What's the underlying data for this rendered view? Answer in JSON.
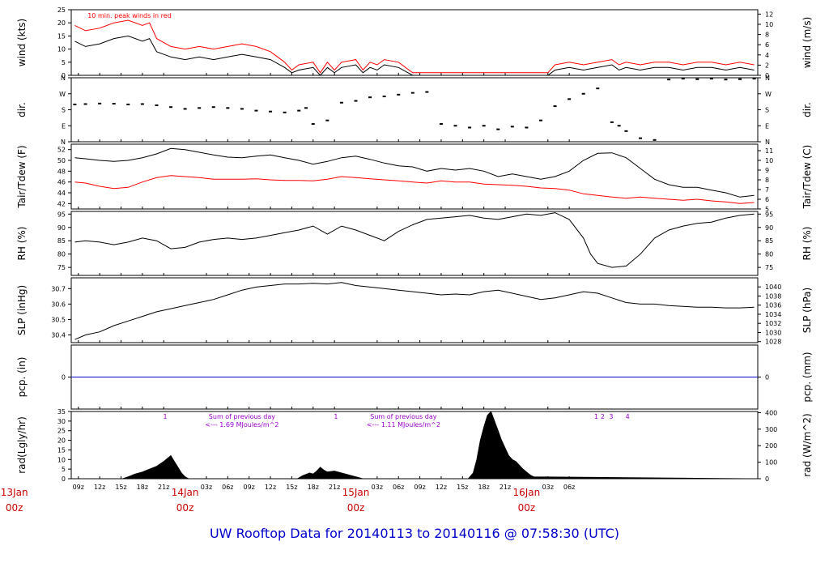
{
  "title": "UW Rooftop Data for 20140113  to  20140116 @ 07:58:30  (UTC)",
  "colors": {
    "primary": "#000000",
    "secondary": "#ff0000",
    "zero_line": "#0000cc",
    "annotation": "#9900cc",
    "day_label": "#cc0000",
    "footer": "#0000cc"
  },
  "chart_data": [
    {
      "type": "line",
      "id": "wind",
      "ylabel_left": "wind (kts)",
      "ylabel_right": "wind (m/s)",
      "ylim": [
        0,
        25
      ],
      "yticks_left": [
        0,
        5,
        10,
        15,
        20,
        25
      ],
      "yticks_right": [
        0,
        2,
        4,
        6,
        8,
        10,
        12
      ],
      "right_scale_factor": 0.5144,
      "annotation": "10 min. peak winds in red",
      "series": [
        {
          "name": "",
          "color": "#000000",
          "x": [
            8.5,
            10,
            12,
            14,
            16,
            18,
            19,
            20,
            22,
            24,
            26,
            28,
            30,
            32,
            34,
            36,
            38,
            39,
            40,
            42,
            43,
            44,
            45,
            46,
            48,
            49,
            50,
            51,
            52,
            54,
            56,
            57,
            58,
            59,
            60,
            62,
            64,
            66,
            68,
            70,
            72,
            74,
            75,
            76,
            78,
            80,
            82,
            84,
            85,
            86,
            88,
            90,
            92,
            94,
            96,
            98,
            100,
            102,
            104
          ],
          "values": [
            13,
            11,
            12,
            14,
            15,
            13,
            14,
            9,
            7,
            6,
            7,
            6,
            7,
            8,
            7,
            6,
            3,
            1,
            2,
            3,
            0,
            3,
            1,
            3,
            4,
            1,
            3,
            2,
            4,
            3,
            0,
            0,
            0,
            0,
            0,
            0,
            0,
            0,
            0,
            0,
            0,
            0,
            0,
            2,
            3,
            2,
            3,
            4,
            2,
            3,
            2,
            3,
            3,
            2,
            3,
            3,
            2,
            3,
            2
          ]
        },
        {
          "name": "",
          "color": "#ff0000",
          "x": [
            8.5,
            10,
            12,
            14,
            16,
            18,
            19,
            20,
            22,
            24,
            26,
            28,
            30,
            32,
            34,
            36,
            38,
            39,
            40,
            42,
            43,
            44,
            45,
            46,
            48,
            49,
            50,
            51,
            52,
            54,
            56,
            57,
            58,
            59,
            60,
            62,
            64,
            66,
            68,
            70,
            72,
            74,
            75,
            76,
            78,
            80,
            82,
            84,
            85,
            86,
            88,
            90,
            92,
            94,
            96,
            98,
            100,
            102,
            104
          ],
          "values": [
            19,
            17,
            18,
            20,
            21,
            19,
            20,
            14,
            11,
            10,
            11,
            10,
            11,
            12,
            11,
            9,
            5,
            2,
            4,
            5,
            1,
            5,
            2,
            5,
            6,
            2,
            5,
            4,
            6,
            5,
            1,
            1,
            1,
            1,
            1,
            1,
            1,
            1,
            1,
            1,
            1,
            1,
            1,
            4,
            5,
            4,
            5,
            6,
            4,
            5,
            4,
            5,
            5,
            4,
            5,
            5,
            4,
            5,
            4
          ]
        }
      ]
    },
    {
      "type": "scatter",
      "id": "dir",
      "ylabel_left": "dir.",
      "ylabel_right": "dir.",
      "ylim": [
        0,
        360
      ],
      "ytick_labels": [
        "N",
        "E",
        "S",
        "W",
        "N"
      ],
      "ytick_values": [
        0,
        90,
        180,
        270,
        360
      ],
      "series": [
        {
          "name": "",
          "color": "#000000",
          "x": [
            8.5,
            10,
            12,
            14,
            16,
            18,
            20,
            22,
            24,
            26,
            28,
            30,
            32,
            34,
            36,
            38,
            40,
            41,
            42,
            44,
            46,
            48,
            50,
            52,
            54,
            56,
            58,
            60,
            62,
            64,
            66,
            68,
            70,
            72,
            74,
            76,
            78,
            80,
            82,
            84,
            85,
            86,
            88,
            90,
            92,
            94,
            96,
            98,
            100,
            102,
            104
          ],
          "values": [
            210,
            212,
            215,
            214,
            210,
            212,
            205,
            195,
            185,
            190,
            195,
            190,
            185,
            175,
            170,
            165,
            175,
            190,
            100,
            120,
            220,
            230,
            250,
            255,
            265,
            275,
            280,
            100,
            90,
            80,
            90,
            70,
            85,
            80,
            120,
            200,
            240,
            270,
            300,
            110,
            90,
            60,
            20,
            10,
            350,
            355,
            352,
            355,
            350,
            352,
            355
          ]
        }
      ]
    },
    {
      "type": "line",
      "id": "temperature",
      "ylabel_left": "Tair/Tdew (F)",
      "ylabel_right": "Tair/Tdew (C)",
      "ylim": [
        41,
        53
      ],
      "yticks_left": [
        42,
        44,
        46,
        48,
        50,
        52
      ],
      "yticks_right": [
        5,
        6,
        7,
        8,
        9,
        10,
        11
      ],
      "series": [
        {
          "name": "",
          "color": "#000000",
          "x": [
            8.5,
            10,
            12,
            14,
            16,
            18,
            20,
            22,
            24,
            26,
            28,
            30,
            32,
            34,
            36,
            38,
            40,
            42,
            44,
            46,
            48,
            50,
            52,
            54,
            56,
            58,
            60,
            62,
            64,
            66,
            68,
            70,
            72,
            74,
            76,
            78,
            80,
            82,
            84,
            86,
            88,
            90,
            92,
            94,
            96,
            98,
            100,
            102,
            104
          ],
          "values": [
            50.5,
            50.3,
            50.0,
            49.8,
            50.0,
            50.5,
            51.2,
            52.2,
            52.0,
            51.5,
            51.0,
            50.6,
            50.5,
            50.8,
            51.0,
            50.5,
            50.0,
            49.3,
            49.8,
            50.5,
            50.8,
            50.2,
            49.5,
            49.0,
            48.8,
            48.0,
            48.5,
            48.2,
            48.5,
            48.0,
            47.0,
            47.5,
            47.0,
            46.5,
            47.0,
            48.0,
            50.0,
            51.3,
            51.4,
            50.5,
            48.5,
            46.5,
            45.5,
            45.0,
            45.0,
            44.5,
            44.0,
            43.2,
            43.5
          ]
        },
        {
          "name": "",
          "color": "#ff0000",
          "x": [
            8.5,
            10,
            12,
            14,
            16,
            18,
            20,
            22,
            24,
            26,
            28,
            30,
            32,
            34,
            36,
            38,
            40,
            42,
            44,
            46,
            48,
            50,
            52,
            54,
            56,
            58,
            60,
            62,
            64,
            66,
            68,
            70,
            72,
            74,
            76,
            78,
            80,
            82,
            84,
            86,
            88,
            90,
            92,
            94,
            96,
            98,
            100,
            102,
            104
          ],
          "values": [
            46.0,
            45.8,
            45.2,
            44.8,
            45.0,
            46.0,
            46.8,
            47.2,
            47.0,
            46.8,
            46.5,
            46.5,
            46.5,
            46.6,
            46.4,
            46.3,
            46.3,
            46.2,
            46.5,
            47.0,
            46.8,
            46.6,
            46.4,
            46.2,
            46.0,
            45.8,
            46.2,
            46.0,
            46.0,
            45.6,
            45.5,
            45.4,
            45.2,
            44.9,
            44.8,
            44.5,
            43.8,
            43.5,
            43.2,
            43.0,
            43.2,
            43.0,
            42.8,
            42.6,
            42.8,
            42.5,
            42.3,
            42.0,
            42.2
          ]
        }
      ]
    },
    {
      "type": "line",
      "id": "rh",
      "ylabel_left": "RH (%)",
      "ylabel_right": "RH (%)",
      "ylim": [
        72,
        96
      ],
      "yticks_left": [
        75,
        80,
        85,
        90,
        95
      ],
      "yticks_right": [
        75,
        80,
        85,
        90,
        95
      ],
      "series": [
        {
          "name": "",
          "color": "#000000",
          "x": [
            8.5,
            10,
            12,
            14,
            16,
            18,
            20,
            22,
            24,
            26,
            28,
            30,
            32,
            34,
            36,
            38,
            40,
            42,
            44,
            46,
            48,
            50,
            52,
            54,
            56,
            58,
            60,
            62,
            64,
            66,
            68,
            70,
            72,
            74,
            76,
            78,
            80,
            81,
            82,
            84,
            86,
            88,
            90,
            92,
            94,
            96,
            98,
            100,
            102,
            104
          ],
          "values": [
            84.5,
            85.0,
            84.5,
            83.5,
            84.5,
            86.0,
            85.0,
            82.0,
            82.5,
            84.5,
            85.5,
            86.0,
            85.5,
            86.0,
            87.0,
            88.0,
            89.0,
            90.5,
            87.5,
            90.5,
            89.0,
            87.0,
            85.0,
            88.5,
            91.0,
            93.0,
            93.5,
            94.0,
            94.5,
            93.5,
            93.0,
            94.0,
            95.0,
            94.5,
            95.5,
            93.0,
            86.0,
            80.0,
            76.5,
            75.0,
            75.5,
            80.0,
            86.0,
            89.0,
            90.5,
            91.5,
            92.0,
            93.5,
            94.5,
            95.0
          ]
        }
      ]
    },
    {
      "type": "line",
      "id": "slp",
      "ylabel_left": "SLP (inHg)",
      "ylabel_right": "SLP (hPa)",
      "ylim": [
        30.35,
        30.77
      ],
      "yticks_left": [
        30.4,
        30.5,
        30.6,
        30.7
      ],
      "yticks_right": [
        1028,
        1030,
        1032,
        1034,
        1036,
        1038,
        1040
      ],
      "series": [
        {
          "name": "",
          "color": "#000000",
          "x": [
            8.5,
            10,
            12,
            14,
            16,
            18,
            20,
            22,
            24,
            26,
            28,
            30,
            32,
            34,
            36,
            38,
            40,
            42,
            44,
            46,
            48,
            50,
            52,
            54,
            56,
            58,
            60,
            62,
            64,
            66,
            68,
            70,
            72,
            74,
            76,
            78,
            80,
            82,
            84,
            86,
            88,
            90,
            92,
            94,
            96,
            98,
            100,
            102,
            104
          ],
          "values": [
            30.37,
            30.4,
            30.42,
            30.46,
            30.49,
            30.52,
            30.55,
            30.57,
            30.59,
            30.61,
            30.63,
            30.66,
            30.69,
            30.71,
            30.72,
            30.73,
            30.73,
            30.735,
            30.73,
            30.74,
            30.72,
            30.71,
            30.7,
            30.69,
            30.68,
            30.67,
            30.66,
            30.665,
            30.66,
            30.68,
            30.69,
            30.67,
            30.65,
            30.63,
            30.64,
            30.66,
            30.68,
            30.67,
            30.64,
            30.61,
            30.6,
            30.6,
            30.59,
            30.585,
            30.58,
            30.58,
            30.575,
            30.575,
            30.58
          ]
        }
      ]
    },
    {
      "type": "line",
      "id": "pcp",
      "ylabel_left": "pcp. (in)",
      "ylabel_right": "pcp. (mm)",
      "ylim": [
        -1,
        1
      ],
      "yticks_left": [
        0
      ],
      "yticks_right": [
        0
      ],
      "series": [
        {
          "name": "",
          "color": "#0000cc",
          "x": [
            8,
            104.5
          ],
          "values": [
            0,
            0
          ]
        }
      ]
    },
    {
      "type": "area",
      "id": "radiation",
      "ylabel_left": "rad(Lgly/hr)",
      "ylabel_right": "rad (W/m^2)",
      "ylim": [
        0,
        35
      ],
      "yticks_left": [
        0,
        5,
        10,
        15,
        20,
        25,
        30,
        35
      ],
      "yticks_right": [
        0,
        100,
        200,
        300,
        400
      ],
      "right_scale_factor": 11.63,
      "annotations": [
        {
          "text": "1",
          "x": 21.2
        },
        {
          "text": "Sum of previous day",
          "x": 32
        },
        {
          "text": "<--- 1.69 MJoules/m^2",
          "x": 32
        },
        {
          "text": "1",
          "x": 45.2
        },
        {
          "text": "Sum of previous day",
          "x": 54.7
        },
        {
          "text": "<--- 1.11 MJoules/m^2",
          "x": 54.7
        },
        {
          "text": "1",
          "x": 81.8
        },
        {
          "text": "2",
          "x": 82.7
        },
        {
          "text": "3",
          "x": 83.9
        },
        {
          "text": "4",
          "x": 86.2
        }
      ],
      "series": [
        {
          "name": "",
          "color": "#000000",
          "x": [
            8,
            15.2,
            16,
            17,
            18,
            19,
            20,
            21,
            22,
            22.5,
            23,
            23.5,
            24,
            24.5,
            39.8,
            40.5,
            41.5,
            42,
            42.5,
            43,
            43.5,
            44,
            45,
            46,
            47,
            48,
            49,
            63.8,
            64.5,
            65,
            65.5,
            66,
            66.5,
            67,
            67.5,
            68,
            68.5,
            69,
            69.5,
            70,
            70.5,
            71,
            71.5,
            72,
            72.5,
            73,
            104.5
          ],
          "values": [
            0,
            0,
            1,
            2.5,
            3.5,
            5,
            6.5,
            9,
            12,
            9,
            6,
            3,
            1,
            0,
            0,
            1.5,
            3,
            2.5,
            4,
            6,
            4.5,
            3.5,
            4,
            3,
            2,
            1,
            0,
            0,
            3,
            10,
            20,
            27,
            33,
            35,
            30,
            25,
            20,
            16,
            12,
            10,
            9,
            7,
            5,
            3.5,
            2,
            1,
            0
          ]
        }
      ]
    }
  ],
  "x_axis": {
    "tick_labels": [
      "09z",
      "12z",
      "15z",
      "18z",
      "21z",
      "03z",
      "06z",
      "09z",
      "12z",
      "15z",
      "18z",
      "21z",
      "03z",
      "06z",
      "09z",
      "12z",
      "15z",
      "18z",
      "21z",
      "03z",
      "06z"
    ],
    "tick_hours": [
      9,
      12,
      15,
      18,
      21,
      27,
      30,
      33,
      36,
      39,
      42,
      45,
      51,
      54,
      57,
      60,
      63,
      66,
      69,
      75,
      78
    ],
    "day_labels": [
      {
        "date": "13Jan",
        "time": "00z",
        "hour": 0
      },
      {
        "date": "14Jan",
        "time": "00z",
        "hour": 24
      },
      {
        "date": "15Jan",
        "time": "00z",
        "hour": 48
      },
      {
        "date": "16Jan",
        "time": "00z",
        "hour": 72
      }
    ]
  }
}
